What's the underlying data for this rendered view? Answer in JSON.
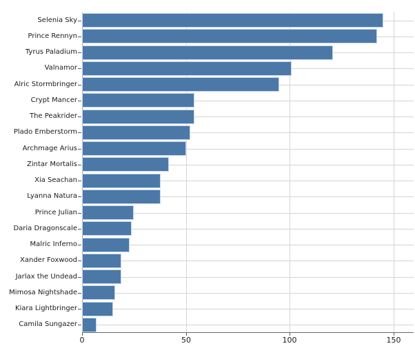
{
  "chart_data": {
    "type": "bar",
    "orientation": "horizontal",
    "title": "",
    "xlabel": "",
    "ylabel": "",
    "categories": [
      "Selenia Sky",
      "Prince Rennyn",
      "Tyrus Paladium",
      "Valnamor",
      "Alric Stormbringer",
      "Crypt Mancer",
      "The Peakrider",
      "Plado Emberstorm",
      "Archmage Arius",
      "Zintar Mortalis",
      "Xia Seachan",
      "Lyanna Natura",
      "Prince Julian",
      "Daria Dragonscale",
      "Malric Inferno",
      "Xander Foxwood",
      "Jarlax the Undead",
      "Mimosa Nightshade",
      "Kiara Lightbringer",
      "Camila Sungazer"
    ],
    "values": [
      145,
      142,
      121,
      101,
      95,
      54,
      54,
      52,
      50,
      42,
      38,
      38,
      25,
      24,
      23,
      19,
      19,
      16,
      15,
      7
    ],
    "xticks": [
      0,
      50,
      100,
      150
    ],
    "xlim": [
      0,
      160
    ],
    "grid": true,
    "legend": null,
    "colors": {
      "bar_fill": "#4c78a8",
      "bar_edge": "#c3d6ea",
      "grid": "#d4d4d4",
      "spine_bottom": "#666666",
      "spine_left": "#999999",
      "tick": "#555555",
      "text": "#1a1a1a",
      "background": "#ffffff"
    }
  }
}
